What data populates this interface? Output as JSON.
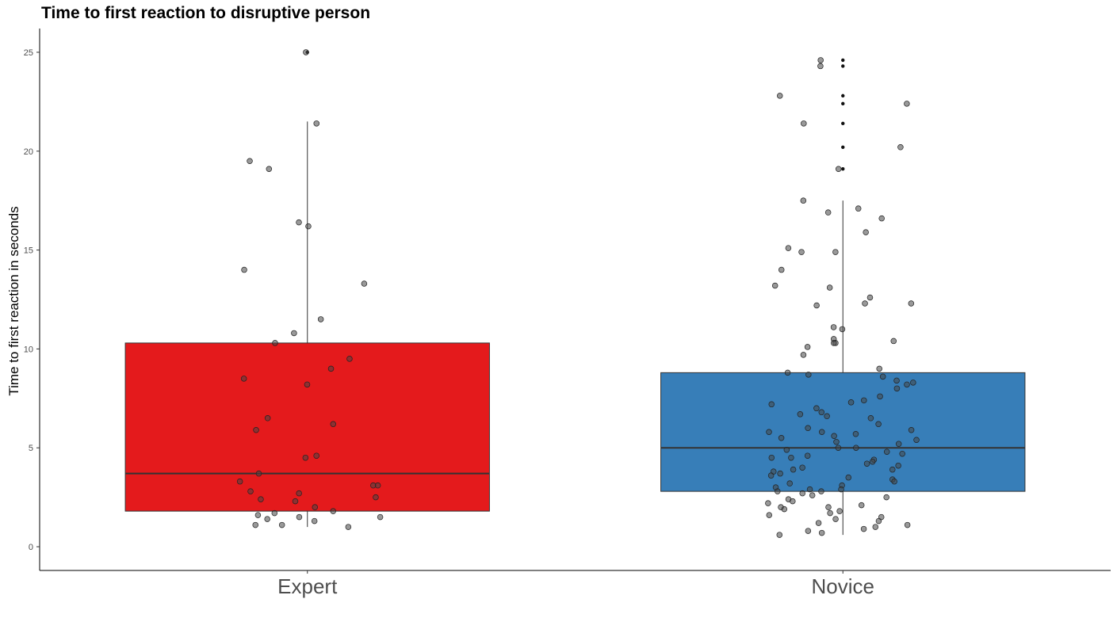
{
  "chart_data": {
    "type": "boxplot",
    "title": "Time to first reaction to disruptive person",
    "xlabel": "",
    "ylabel": "Time to first reaction in seconds",
    "ylim": [
      -1.2,
      26.2
    ],
    "yticks": [
      0,
      5,
      10,
      15,
      20,
      25
    ],
    "categories": [
      "Expert",
      "Novice"
    ],
    "grid": false,
    "legend": "none",
    "boxes": [
      {
        "category": "Expert",
        "color": "#E41A1C",
        "lower_whisker": 1.0,
        "q1": 1.8,
        "median": 3.7,
        "q3": 10.3,
        "upper_whisker": 21.5,
        "outliers": [
          25.0
        ],
        "points": [
          25.0,
          21.4,
          19.5,
          19.1,
          16.4,
          16.2,
          14.0,
          13.3,
          11.5,
          10.8,
          10.3,
          9.5,
          9.0,
          8.5,
          8.2,
          6.5,
          6.2,
          5.9,
          4.6,
          4.5,
          3.7,
          3.3,
          3.1,
          3.1,
          2.8,
          2.7,
          2.5,
          2.4,
          2.3,
          2.0,
          1.8,
          1.7,
          1.6,
          1.5,
          1.5,
          1.4,
          1.3,
          1.1,
          1.1,
          1.0
        ]
      },
      {
        "category": "Novice",
        "color": "#377EB8",
        "lower_whisker": 0.6,
        "q1": 2.8,
        "median": 5.0,
        "q3": 8.8,
        "upper_whisker": 17.5,
        "outliers": [
          24.6,
          24.3,
          22.8,
          22.4,
          21.4,
          20.2,
          19.1
        ],
        "points": [
          24.6,
          24.3,
          22.8,
          22.4,
          21.4,
          20.2,
          19.1,
          17.5,
          17.1,
          16.9,
          16.6,
          15.9,
          15.1,
          14.9,
          14.9,
          14.0,
          13.2,
          13.1,
          12.6,
          12.3,
          12.3,
          12.2,
          11.1,
          11.0,
          10.5,
          10.4,
          10.3,
          10.3,
          10.1,
          9.7,
          9.0,
          8.8,
          8.7,
          8.6,
          8.4,
          8.3,
          8.2,
          8.0,
          7.6,
          7.4,
          7.3,
          7.2,
          7.0,
          6.8,
          6.7,
          6.6,
          6.5,
          6.2,
          6.0,
          5.9,
          5.8,
          5.8,
          5.7,
          5.6,
          5.5,
          5.4,
          5.3,
          5.2,
          5.0,
          5.0,
          4.9,
          4.8,
          4.7,
          4.6,
          4.5,
          4.5,
          4.4,
          4.3,
          4.2,
          4.1,
          4.0,
          3.9,
          3.9,
          3.8,
          3.7,
          3.6,
          3.5,
          3.4,
          3.3,
          3.2,
          3.1,
          3.0,
          2.9,
          2.9,
          2.8,
          2.8,
          2.7,
          2.6,
          2.5,
          2.4,
          2.3,
          2.2,
          2.1,
          2.0,
          2.0,
          1.9,
          1.8,
          1.7,
          1.6,
          1.5,
          1.4,
          1.3,
          1.2,
          1.1,
          1.0,
          0.9,
          0.8,
          0.7,
          0.6
        ]
      }
    ]
  }
}
